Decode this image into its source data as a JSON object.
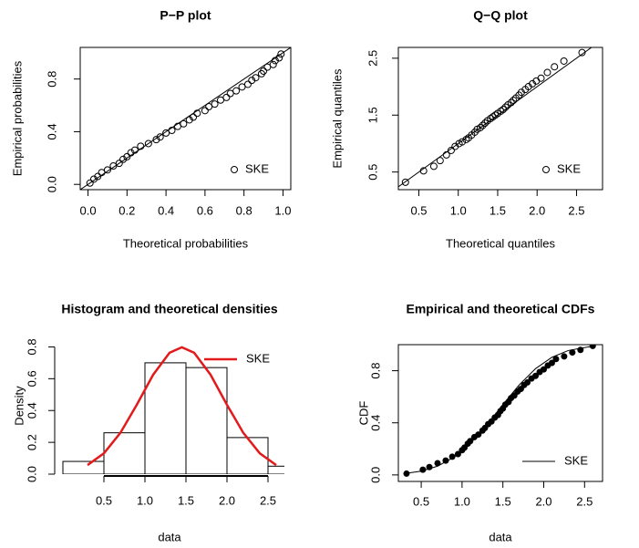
{
  "chart_data": [
    {
      "type": "scatter",
      "diagonal": true,
      "title": "P−P plot",
      "xlabel": "Theoretical probabilities",
      "ylabel": "Empirical probabilities",
      "xlim": [
        -0.04,
        1.04
      ],
      "ylim": [
        -0.04,
        1.04
      ],
      "xticks": [
        {
          "value": 0,
          "label": "0.0"
        },
        0.2,
        0.4,
        0.6,
        0.8,
        {
          "value": 1,
          "label": "1.0"
        }
      ],
      "yticks": [
        {
          "value": 0,
          "label": "0.0"
        },
        0.4,
        0.8
      ],
      "legend": "bottomright",
      "box": true,
      "series": [
        {
          "name": "SKE",
          "color": "#000000",
          "x": [
            0.01,
            0.03,
            0.05,
            0.07,
            0.1,
            0.13,
            0.16,
            0.18,
            0.2,
            0.22,
            0.24,
            0.27,
            0.31,
            0.35,
            0.37,
            0.4,
            0.43,
            0.46,
            0.49,
            0.52,
            0.54,
            0.56,
            0.6,
            0.62,
            0.65,
            0.68,
            0.71,
            0.73,
            0.76,
            0.79,
            0.82,
            0.84,
            0.86,
            0.89,
            0.9,
            0.92,
            0.95,
            0.96,
            0.98,
            0.99
          ],
          "values": [
            0.01,
            0.04,
            0.06,
            0.09,
            0.11,
            0.14,
            0.16,
            0.19,
            0.21,
            0.24,
            0.26,
            0.29,
            0.31,
            0.34,
            0.36,
            0.39,
            0.41,
            0.44,
            0.46,
            0.49,
            0.51,
            0.54,
            0.56,
            0.59,
            0.61,
            0.64,
            0.66,
            0.69,
            0.71,
            0.74,
            0.76,
            0.79,
            0.81,
            0.84,
            0.86,
            0.89,
            0.91,
            0.94,
            0.96,
            0.99
          ]
        }
      ]
    },
    {
      "type": "scatter",
      "diagonal": true,
      "title": "Q−Q plot",
      "xlabel": "Theoretical quantiles",
      "ylabel": "Empirical quantiles",
      "xlim": [
        0.24,
        2.83
      ],
      "ylim": [
        0.19,
        2.69
      ],
      "xticks": [
        0.5,
        {
          "value": 1,
          "label": "1.0"
        },
        1.5,
        {
          "value": 2,
          "label": "2.0"
        },
        2.5
      ],
      "yticks": [
        0.5,
        1.5,
        2.5
      ],
      "legend": "bottomright",
      "box": true,
      "series": [
        {
          "name": "SKE",
          "color": "#000000",
          "x": [
            0.33,
            0.56,
            0.69,
            0.77,
            0.85,
            0.91,
            0.96,
            1.01,
            1.05,
            1.1,
            1.13,
            1.17,
            1.21,
            1.24,
            1.28,
            1.31,
            1.34,
            1.37,
            1.41,
            1.44,
            1.47,
            1.5,
            1.54,
            1.57,
            1.6,
            1.63,
            1.67,
            1.7,
            1.73,
            1.77,
            1.8,
            1.85,
            1.89,
            1.94,
            1.99,
            2.05,
            2.13,
            2.22,
            2.34,
            2.57
          ],
          "values": [
            0.32,
            0.52,
            0.6,
            0.7,
            0.8,
            0.88,
            0.95,
            1.0,
            1.03,
            1.07,
            1.1,
            1.15,
            1.2,
            1.25,
            1.28,
            1.32,
            1.36,
            1.4,
            1.44,
            1.47,
            1.5,
            1.53,
            1.57,
            1.6,
            1.64,
            1.68,
            1.72,
            1.76,
            1.8,
            1.85,
            1.9,
            1.95,
            2.0,
            2.05,
            2.1,
            2.15,
            2.25,
            2.35,
            2.45,
            2.6
          ]
        }
      ]
    },
    {
      "type": "histogram",
      "title": "Histogram and theoretical densities",
      "xlabel": "data",
      "ylabel": "Density",
      "xlim": [
        -0.1,
        2.7
      ],
      "ylim": [
        0,
        0.86
      ],
      "xticks": [
        0.5,
        {
          "value": 1,
          "label": "1.0"
        },
        1.5,
        {
          "value": 2,
          "label": "2.0"
        },
        2.5
      ],
      "yticks": [
        {
          "value": 0,
          "label": "0.0"
        },
        0.2,
        0.4,
        0.6,
        0.8
      ],
      "bins": [
        0,
        0.5,
        1,
        1.5,
        2,
        2.5,
        3
      ],
      "values": [
        0.08,
        0.26,
        0.7,
        0.67,
        0.23,
        0.05
      ],
      "legend": "topright",
      "box": false,
      "series": [
        {
          "name": "SKE",
          "color": "#e31a1c",
          "x": [
            0.3,
            0.5,
            0.7,
            0.9,
            1.1,
            1.3,
            1.45,
            1.6,
            1.8,
            2.0,
            2.2,
            2.4,
            2.6
          ],
          "values": [
            0.057,
            0.131,
            0.259,
            0.436,
            0.625,
            0.763,
            0.798,
            0.763,
            0.625,
            0.436,
            0.259,
            0.131,
            0.057
          ]
        }
      ]
    },
    {
      "type": "ecdf",
      "title": "Empirical and theoretical CDFs",
      "xlabel": "data",
      "ylabel": "CDF",
      "xlim": [
        0.22,
        2.72
      ],
      "ylim": [
        -0.05,
        1.0
      ],
      "xticks": [
        0.5,
        {
          "value": 1,
          "label": "1.0"
        },
        1.5,
        {
          "value": 2,
          "label": "2.0"
        },
        2.5
      ],
      "yticks": [
        {
          "value": 0,
          "label": "0.0"
        },
        0.4,
        0.8
      ],
      "legend": "bottomright",
      "box": true,
      "points": {
        "x": [
          0.32,
          0.52,
          0.6,
          0.7,
          0.8,
          0.88,
          0.95,
          1.0,
          1.03,
          1.07,
          1.1,
          1.15,
          1.2,
          1.25,
          1.28,
          1.32,
          1.36,
          1.4,
          1.44,
          1.47,
          1.5,
          1.53,
          1.57,
          1.6,
          1.64,
          1.68,
          1.72,
          1.76,
          1.8,
          1.85,
          1.9,
          1.95,
          2.0,
          2.05,
          2.1,
          2.15,
          2.25,
          2.35,
          2.45,
          2.6
        ],
        "values": [
          0.01,
          0.04,
          0.06,
          0.09,
          0.11,
          0.14,
          0.16,
          0.19,
          0.21,
          0.24,
          0.26,
          0.29,
          0.31,
          0.34,
          0.36,
          0.39,
          0.41,
          0.44,
          0.46,
          0.49,
          0.51,
          0.54,
          0.56,
          0.59,
          0.61,
          0.64,
          0.66,
          0.69,
          0.71,
          0.74,
          0.76,
          0.79,
          0.81,
          0.84,
          0.86,
          0.89,
          0.91,
          0.94,
          0.96,
          0.99
        ]
      },
      "series": [
        {
          "name": "SKE",
          "color": "#000000",
          "x": [
            0.3,
            0.5,
            0.7,
            0.9,
            1.1,
            1.3,
            1.5,
            1.7,
            1.9,
            2.1,
            2.3,
            2.6
          ],
          "values": [
            0.011,
            0.029,
            0.067,
            0.136,
            0.242,
            0.382,
            0.54,
            0.691,
            0.816,
            0.903,
            0.955,
            0.989
          ]
        }
      ]
    }
  ]
}
